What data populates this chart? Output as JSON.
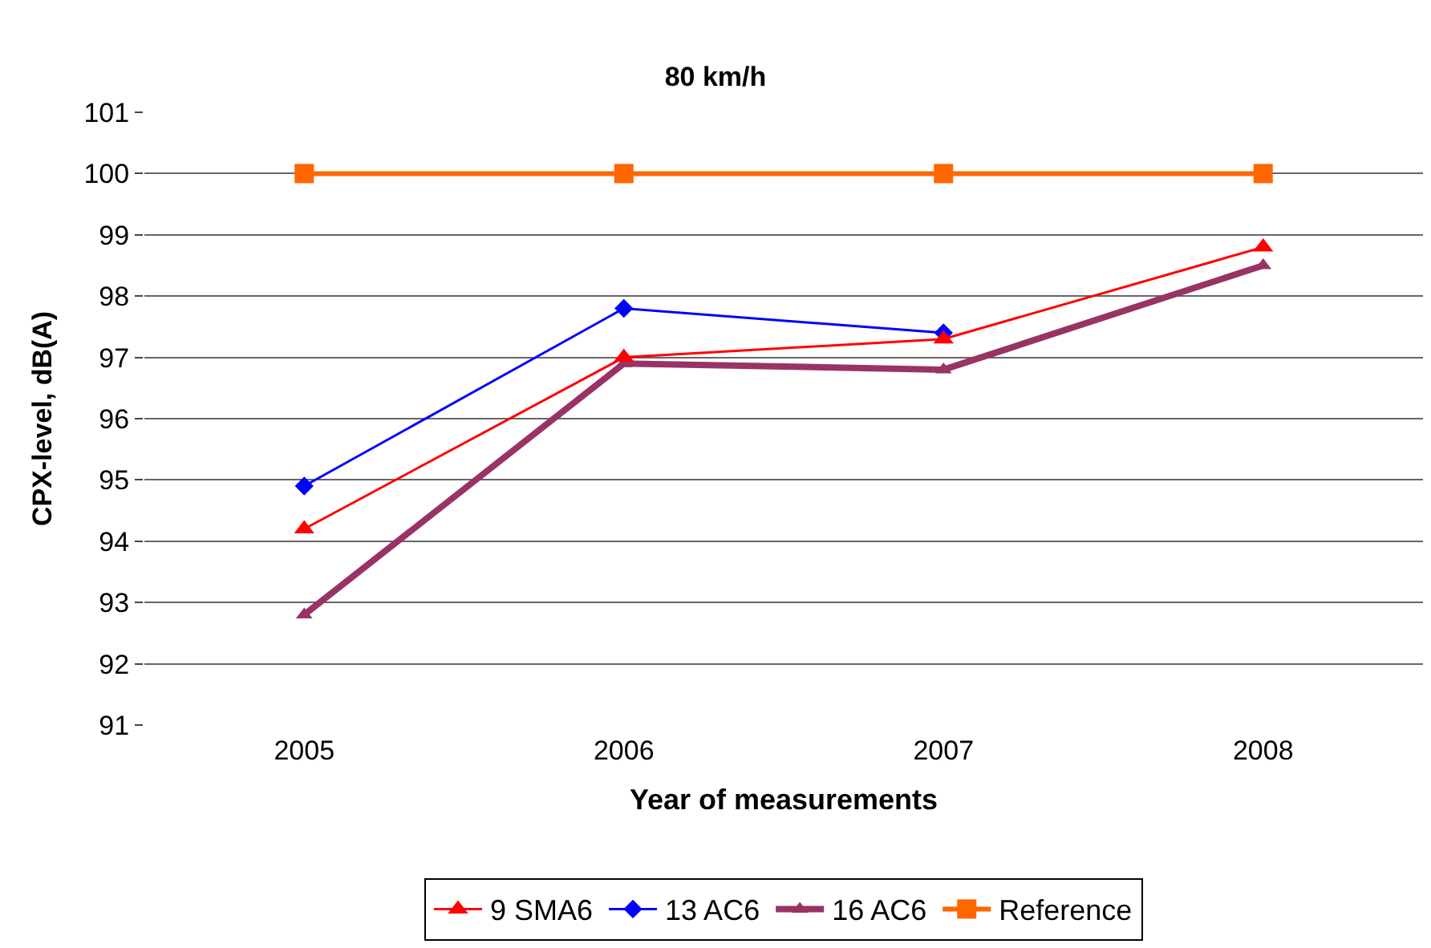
{
  "chart_data": {
    "type": "line",
    "title": "80 km/h",
    "xlabel": "Year of measurements",
    "ylabel": "CPX-level, dB(A)",
    "categories": [
      "2005",
      "2006",
      "2007",
      "2008"
    ],
    "series": [
      {
        "name": "9 SMA6",
        "color": "#ff0000",
        "marker": "triangle",
        "values": [
          94.2,
          97.0,
          97.3,
          98.8
        ]
      },
      {
        "name": "13 AC6",
        "color": "#0000ff",
        "marker": "diamond",
        "values": [
          94.9,
          97.8,
          97.4,
          null
        ]
      },
      {
        "name": "16 AC6",
        "color": "#993366",
        "marker": "triangle",
        "values": [
          92.8,
          96.9,
          96.8,
          98.5
        ]
      },
      {
        "name": "Reference",
        "color": "#ff6600",
        "marker": "square",
        "values": [
          100,
          100,
          100,
          100
        ]
      }
    ],
    "ylim": [
      91,
      101
    ],
    "yticks": [
      91,
      92,
      93,
      94,
      95,
      96,
      97,
      98,
      99,
      100,
      101
    ],
    "grid": "y",
    "legend": "bottom",
    "line_style": "solid"
  }
}
